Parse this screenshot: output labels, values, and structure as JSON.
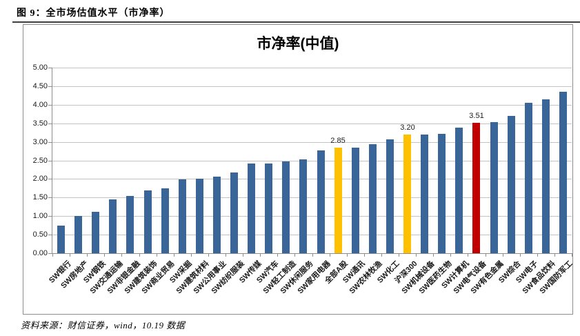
{
  "figure": {
    "caption": "图 9：全市场估值水平（市净率）",
    "source_note": "资料来源：财信证券，wind，10.19 数据"
  },
  "chart_data": {
    "type": "bar",
    "title": "市净率(中值)",
    "categories": [
      "SW银行",
      "SW房地产",
      "SW钢铁",
      "SW交通运输",
      "SW非银金融",
      "SW建筑装饰",
      "SW商业贸易",
      "SW采掘",
      "SW建筑材料",
      "SW公用事业",
      "SW纺织服装",
      "SW传媒",
      "SW汽车",
      "SW轻工制造",
      "SW休闲服务",
      "SW家用电器",
      "全部A股",
      "SW通讯",
      "SW农林牧渔",
      "SW化工",
      "沪深300",
      "SW机械设备",
      "SW医药生物",
      "SW计算机",
      "SW电气设备",
      "SW有色金属",
      "SW综合",
      "SW电子",
      "SW食品饮料",
      "SW国防军工"
    ],
    "values": [
      0.75,
      1.01,
      1.11,
      1.45,
      1.55,
      1.7,
      1.75,
      1.98,
      2.0,
      2.06,
      2.17,
      2.41,
      2.41,
      2.47,
      2.52,
      2.77,
      2.85,
      2.85,
      2.94,
      3.07,
      3.2,
      3.2,
      3.21,
      3.39,
      3.51,
      3.54,
      3.7,
      4.06,
      4.14,
      4.35
    ],
    "highlight": {
      "yellow": [
        "全部A股",
        "沪深300"
      ],
      "red": [
        "SW电气设备"
      ]
    },
    "data_labels": [
      {
        "category": "全部A股",
        "text": "2.85"
      },
      {
        "category": "沪深300",
        "text": "3.20"
      },
      {
        "category": "SW电气设备",
        "text": "3.51"
      }
    ],
    "ylim": [
      0,
      5
    ],
    "ytick_step": 0.5,
    "ytick_labels": [
      "5.00",
      "4.50",
      "4.00",
      "3.50",
      "3.00",
      "2.50",
      "2.00",
      "1.50",
      "1.00",
      "0.50",
      "0.00"
    ],
    "grid": true,
    "legend": "none",
    "colors": {
      "bar": "#3A6598",
      "highlight": "#FFC000",
      "emphasis": "#C00000",
      "gridline": "#C3C3C3",
      "axis": "#8C8C8C"
    }
  }
}
